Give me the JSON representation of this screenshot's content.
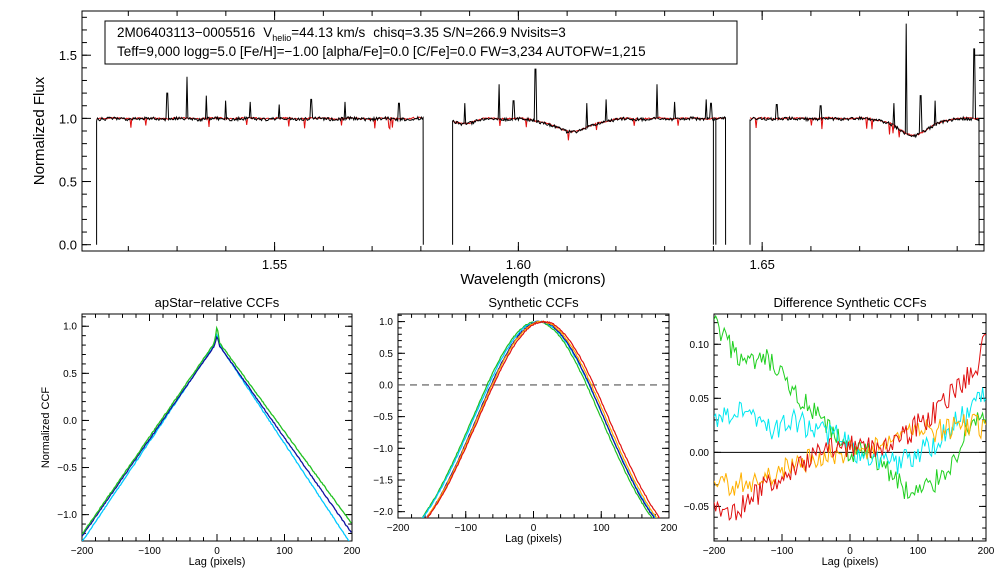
{
  "chart_data": [
    {
      "type": "line",
      "id": "spectrum",
      "title": "",
      "xlabel": "Wavelength (microns)",
      "ylabel": "Normalized Flux",
      "xlim": [
        1.5105,
        1.6955
      ],
      "ylim": [
        -0.05,
        1.85
      ],
      "xticks": [
        1.55,
        1.6,
        1.65
      ],
      "xtick_labels": [
        "1.55",
        "1.60",
        "1.65"
      ],
      "yticks": [
        0.0,
        0.5,
        1.0,
        1.5
      ],
      "ytick_labels": [
        "0.0",
        "0.5",
        "1.0",
        "1.5"
      ],
      "info_box": {
        "line1": {
          "star": "2M06403113−0005516",
          "v_label": "V",
          "v_sub": "helio",
          "v_value": "=44.13 km/s",
          "rest": "chisq=3.35  S/N=266.9  Nvisits=3"
        },
        "line2": "Teff=9,000 logg=5.0 [Fe/H]=−1.00 [alpha/Fe]=0.0 [C/Fe]=0.0 FW=3,234 AUTOFW=1,215"
      },
      "chips": [
        {
          "start": 1.5135,
          "end": 1.5805
        },
        {
          "start": 1.5865,
          "end": 1.6425
        },
        {
          "start": 1.6475,
          "end": 1.6945
        }
      ],
      "emission_spikes": [
        {
          "x": 1.528,
          "height": 1.2
        },
        {
          "x": 1.532,
          "height": 1.33
        },
        {
          "x": 1.536,
          "height": 1.18
        },
        {
          "x": 1.54,
          "height": 1.14
        },
        {
          "x": 1.545,
          "height": 1.13
        },
        {
          "x": 1.551,
          "height": 1.11
        },
        {
          "x": 1.5575,
          "height": 1.15
        },
        {
          "x": 1.5645,
          "height": 1.13
        },
        {
          "x": 1.5755,
          "height": 1.12
        },
        {
          "x": 1.589,
          "height": 1.12
        },
        {
          "x": 1.596,
          "height": 1.27
        },
        {
          "x": 1.599,
          "height": 1.14
        },
        {
          "x": 1.6035,
          "height": 1.39
        },
        {
          "x": 1.614,
          "height": 1.12
        },
        {
          "x": 1.618,
          "height": 1.15
        },
        {
          "x": 1.6285,
          "height": 1.27
        },
        {
          "x": 1.632,
          "height": 1.13
        },
        {
          "x": 1.6385,
          "height": 1.15
        },
        {
          "x": 1.6395,
          "height": 1.12
        },
        {
          "x": 1.653,
          "height": 1.11
        },
        {
          "x": 1.662,
          "height": 1.1
        },
        {
          "x": 1.677,
          "height": 1.12
        },
        {
          "x": 1.6795,
          "height": 1.75
        },
        {
          "x": 1.6825,
          "height": 1.18
        },
        {
          "x": 1.6855,
          "height": 1.14
        },
        {
          "x": 1.6935,
          "height": 1.55
        }
      ],
      "absorption_lines": [
        {
          "x": 1.611,
          "depth": 0.1,
          "width": 0.0055
        },
        {
          "x": 1.681,
          "depth": 0.13,
          "width": 0.0045
        },
        {
          "x": 1.5885,
          "depth": 0.04,
          "width": 0.003
        }
      ],
      "series": [
        {
          "name": "observed",
          "color": "#000000"
        },
        {
          "name": "model",
          "color": "#e01010"
        }
      ]
    },
    {
      "type": "line",
      "id": "apstar_ccf",
      "title": "apStar−relative CCFs",
      "xlabel": "Lag (pixels)",
      "ylabel": "Normalized CCF",
      "xlim": [
        -200,
        200
      ],
      "ylim": [
        -1.28,
        1.13
      ],
      "xticks": [
        -200,
        -100,
        0,
        100,
        200
      ],
      "xtick_labels": [
        "−200",
        "−100",
        "0",
        "100",
        "200"
      ],
      "yticks": [
        -1.0,
        -0.5,
        0.0,
        0.5,
        1.0
      ],
      "ytick_labels": [
        "−1.0",
        "−0.5",
        "0.0",
        "0.5",
        "1.0"
      ],
      "series": [
        {
          "name": "visit-1",
          "color": "#00c8ff",
          "peak": 0.84,
          "left_end": -1.29,
          "right_end": -1.33,
          "spike": 0.92
        },
        {
          "name": "visit-2",
          "color": "#1010a0",
          "peak": 0.83,
          "left_end": -1.23,
          "right_end": -1.2,
          "spike": 0.9
        },
        {
          "name": "visit-3",
          "color": "#20c020",
          "peak": 0.86,
          "left_end": -1.21,
          "right_end": -1.1,
          "spike": 1.0
        }
      ]
    },
    {
      "type": "line",
      "id": "synthetic_ccf",
      "title": "Synthetic CCFs",
      "xlabel": "Lag (pixels)",
      "ylabel": "",
      "xlim": [
        -200,
        200
      ],
      "ylim": [
        -2.1,
        1.12
      ],
      "xticks": [
        -200,
        -100,
        0,
        100,
        200
      ],
      "xtick_labels": [
        "−200",
        "−100",
        "0",
        "100",
        "200"
      ],
      "yticks": [
        -2.0,
        -1.5,
        -1.0,
        -0.5,
        0.0,
        0.5,
        1.0
      ],
      "ytick_labels": [
        "−2.0",
        "−1.5",
        "−1.0",
        "−0.5",
        "0.0",
        "0.5",
        "1.0"
      ],
      "reference_line": {
        "y": 0.0,
        "style": "dashed",
        "color": "#555555"
      },
      "series": [
        {
          "name": "synthetic-1",
          "color": "#20c020",
          "center": 5,
          "width": 100
        },
        {
          "name": "synthetic-2",
          "color": "#00c8ff",
          "center": 8,
          "width": 101
        },
        {
          "name": "synthetic-3",
          "color": "#1010a0",
          "center": 10,
          "width": 99
        },
        {
          "name": "synthetic-4",
          "color": "#ffa500",
          "center": 12,
          "width": 100
        },
        {
          "name": "synthetic-5",
          "color": "#e01010",
          "center": 15,
          "width": 101
        }
      ]
    },
    {
      "type": "line",
      "id": "difference_ccf",
      "title": "Difference Synthetic CCFs",
      "xlabel": "Lag (pixels)",
      "ylabel": "",
      "xlim": [
        -200,
        200
      ],
      "ylim": [
        -0.082,
        0.128
      ],
      "xticks": [
        -200,
        -100,
        0,
        100,
        200
      ],
      "xtick_labels": [
        "−200",
        "−100",
        "0",
        "100",
        "200"
      ],
      "yticks": [
        -0.05,
        0.0,
        0.05,
        0.1
      ],
      "ytick_labels": [
        "−0.05",
        "0.00",
        "0.05",
        "0.10"
      ],
      "reference_line": {
        "y": 0.0,
        "style": "solid",
        "color": "#000000"
      },
      "series": [
        {
          "name": "green",
          "color": "#20d020",
          "x": [
            -200,
            -180,
            -150,
            -120,
            -90,
            -60,
            -30,
            0,
            30,
            60,
            90,
            120,
            150,
            180,
            200
          ],
          "y": [
            0.12,
            0.1,
            0.08,
            0.085,
            0.06,
            0.04,
            0.02,
            0.0,
            0.0,
            -0.02,
            -0.04,
            -0.03,
            -0.01,
            0.03,
            0.035
          ]
        },
        {
          "name": "cyan",
          "color": "#00e8f0",
          "x": [
            -200,
            -170,
            -140,
            -110,
            -80,
            -50,
            -20,
            10,
            40,
            70,
            100,
            130,
            160,
            190,
            200
          ],
          "y": [
            0.03,
            0.04,
            0.035,
            0.02,
            0.03,
            0.02,
            0.015,
            0.0,
            -0.01,
            -0.01,
            0.0,
            0.01,
            0.03,
            0.05,
            0.06
          ]
        },
        {
          "name": "orange",
          "color": "#ffb000",
          "x": [
            -200,
            -170,
            -140,
            -110,
            -80,
            -50,
            -20,
            10,
            40,
            70,
            100,
            130,
            160,
            190,
            200
          ],
          "y": [
            -0.03,
            -0.03,
            -0.025,
            -0.02,
            -0.01,
            -0.005,
            0.0,
            0.0,
            0.005,
            0.01,
            0.02,
            0.02,
            0.025,
            0.025,
            0.02
          ]
        },
        {
          "name": "red",
          "color": "#e01010",
          "x": [
            -200,
            -170,
            -140,
            -110,
            -80,
            -50,
            -20,
            10,
            40,
            70,
            100,
            130,
            160,
            190,
            200
          ],
          "y": [
            -0.05,
            -0.055,
            -0.04,
            -0.025,
            -0.015,
            0.0,
            0.005,
            0.005,
            0.005,
            0.01,
            0.025,
            0.04,
            0.06,
            0.085,
            0.11
          ]
        }
      ]
    }
  ]
}
